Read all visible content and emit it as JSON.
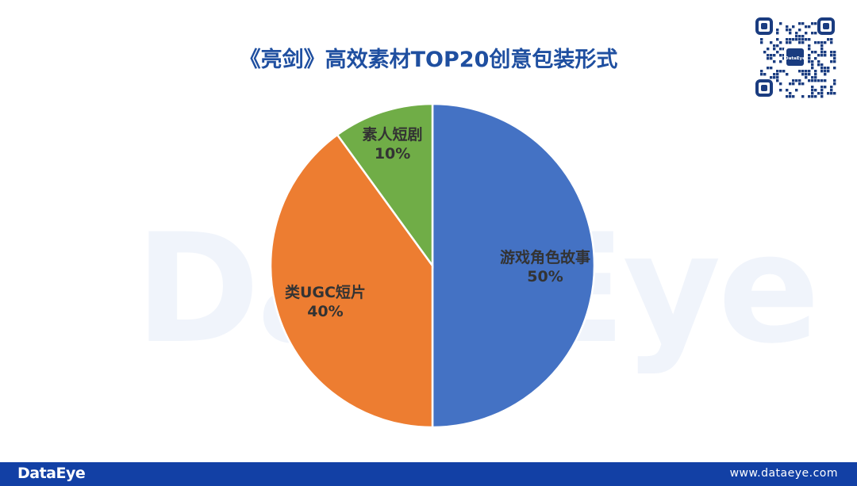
{
  "title": "《亮剑》高效素材TOP20创意包装形式",
  "watermark": "DataEye",
  "qr_logo_text": "DataEye",
  "chart_data": {
    "type": "pie",
    "title": "《亮剑》高效素材TOP20创意包装形式",
    "slices": [
      {
        "label": "游戏角色故事",
        "value": 50,
        "value_label": "50%",
        "color": "#4472c4"
      },
      {
        "label": "类UGC短片",
        "value": 40,
        "value_label": "40%",
        "color": "#ed7d31"
      },
      {
        "label": "素人短剧",
        "value": 10,
        "value_label": "10%",
        "color": "#70ad47"
      }
    ],
    "start": "12 o'clock",
    "direction": "clockwise",
    "legend": "none"
  },
  "footer": {
    "logo": "DataEye",
    "url": "www.dataeye.com",
    "background": "#1240a5"
  },
  "colors": {
    "title": "#1f4fa0",
    "watermark": "#f0f4fb"
  }
}
